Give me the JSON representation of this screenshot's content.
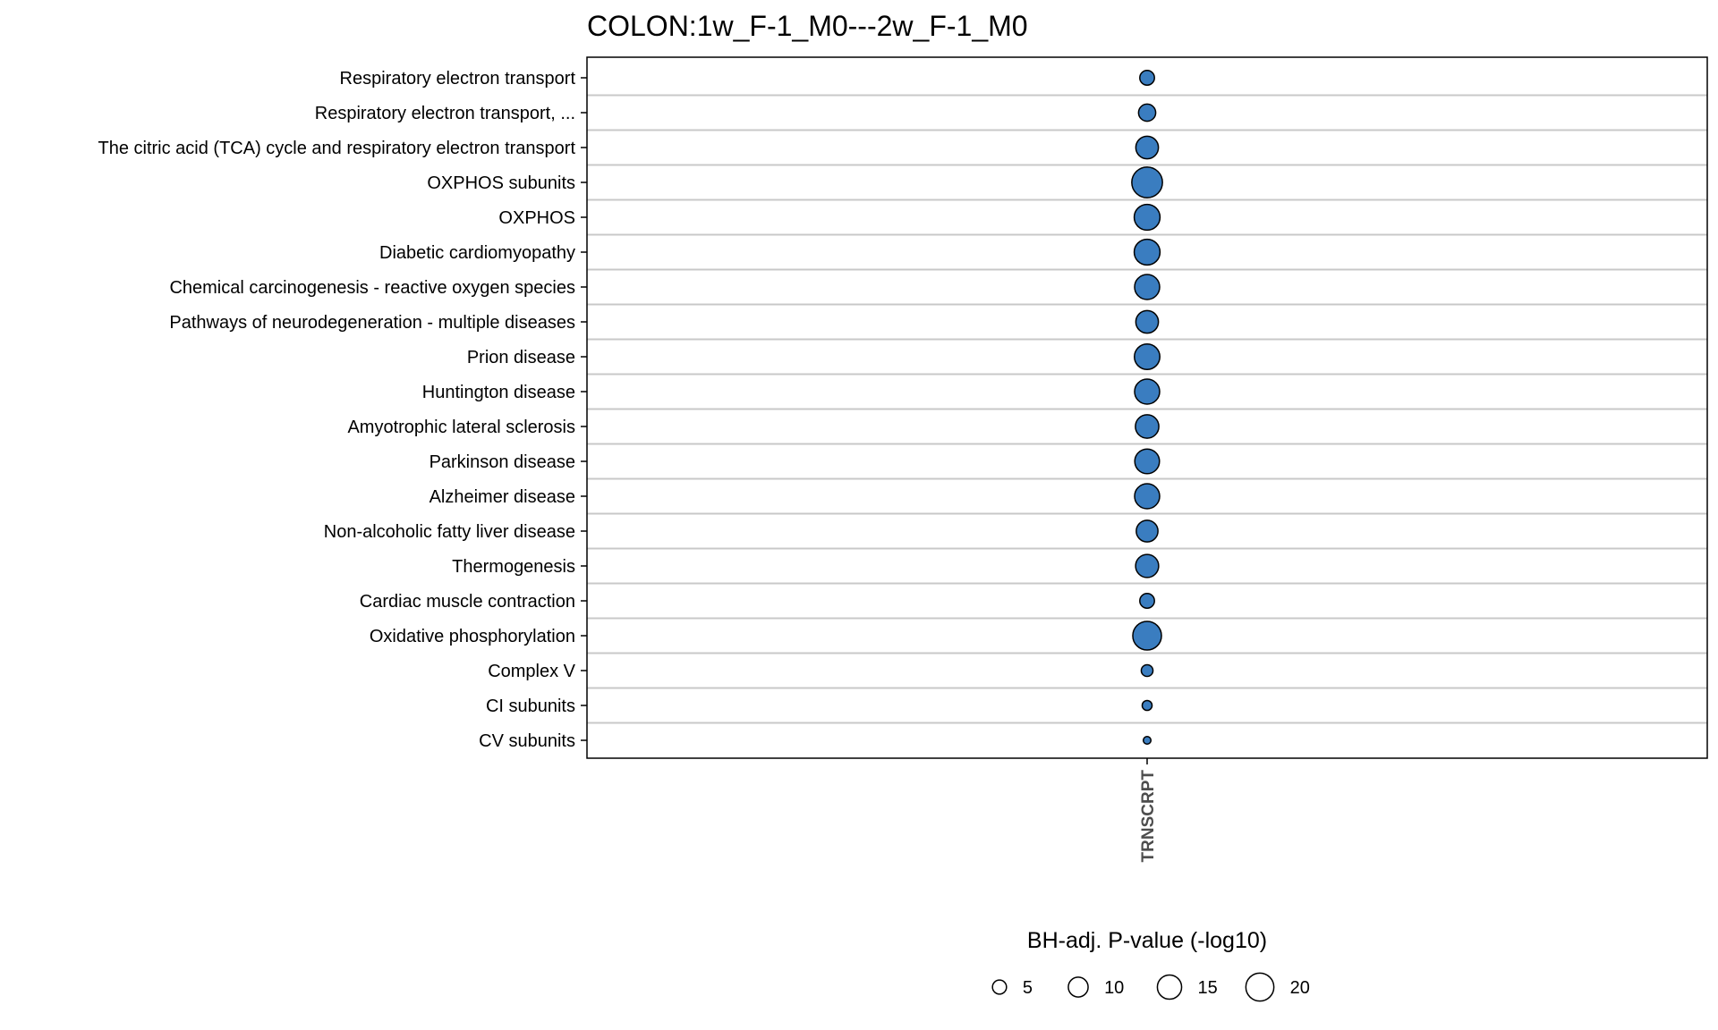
{
  "chart_data": {
    "type": "scatter",
    "title": "COLON:1w_F-1_M0---2w_F-1_M0",
    "x_categories": [
      "TRNSCRPT"
    ],
    "y_categories": [
      "Respiratory electron transport",
      "Respiratory electron transport, ...",
      "The citric acid (TCA) cycle and respiratory electron transport",
      "OXPHOS subunits",
      "OXPHOS",
      "Diabetic cardiomyopathy",
      "Chemical carcinogenesis - reactive oxygen species",
      "Pathways of neurodegeneration - multiple diseases",
      "Prion disease",
      "Huntington disease",
      "Amyotrophic lateral sclerosis",
      "Parkinson disease",
      "Alzheimer disease",
      "Non-alcoholic fatty liver disease",
      "Thermogenesis",
      "Cardiac muscle contraction",
      "Oxidative phosphorylation",
      "Complex V",
      "CI subunits",
      "CV subunits"
    ],
    "points": [
      {
        "x": "TRNSCRPT",
        "y": "Respiratory electron transport",
        "size": 5.5
      },
      {
        "x": "TRNSCRPT",
        "y": "Respiratory electron transport, ...",
        "size": 7.5
      },
      {
        "x": "TRNSCRPT",
        "y": "The citric acid (TCA) cycle and respiratory electron transport",
        "size": 13
      },
      {
        "x": "TRNSCRPT",
        "y": "OXPHOS subunits",
        "size": 24
      },
      {
        "x": "TRNSCRPT",
        "y": "OXPHOS",
        "size": 17
      },
      {
        "x": "TRNSCRPT",
        "y": "Diabetic cardiomyopathy",
        "size": 17
      },
      {
        "x": "TRNSCRPT",
        "y": "Chemical carcinogenesis - reactive oxygen species",
        "size": 16
      },
      {
        "x": "TRNSCRPT",
        "y": "Pathways of neurodegeneration - multiple diseases",
        "size": 13
      },
      {
        "x": "TRNSCRPT",
        "y": "Prion disease",
        "size": 16.5
      },
      {
        "x": "TRNSCRPT",
        "y": "Huntington disease",
        "size": 16
      },
      {
        "x": "TRNSCRPT",
        "y": "Amyotrophic lateral sclerosis",
        "size": 14
      },
      {
        "x": "TRNSCRPT",
        "y": "Parkinson disease",
        "size": 15.5
      },
      {
        "x": "TRNSCRPT",
        "y": "Alzheimer disease",
        "size": 16
      },
      {
        "x": "TRNSCRPT",
        "y": "Non-alcoholic fatty liver disease",
        "size": 12
      },
      {
        "x": "TRNSCRPT",
        "y": "Thermogenesis",
        "size": 13.5
      },
      {
        "x": "TRNSCRPT",
        "y": "Cardiac muscle contraction",
        "size": 5.5
      },
      {
        "x": "TRNSCRPT",
        "y": "Oxidative phosphorylation",
        "size": 21
      },
      {
        "x": "TRNSCRPT",
        "y": "Complex V",
        "size": 3.5
      },
      {
        "x": "TRNSCRPT",
        "y": "CI subunits",
        "size": 2.5
      },
      {
        "x": "TRNSCRPT",
        "y": "CV subunits",
        "size": 1.5
      }
    ],
    "size_legend": {
      "title": "BH-adj. P-value (-log10)",
      "breaks": [
        5,
        10,
        15,
        20
      ],
      "labels": [
        "5",
        "10",
        "15",
        "20"
      ]
    },
    "point_fill": "#3A7DC0",
    "point_stroke": "#000000",
    "grid_color": "#C8C8C8",
    "grid": "horizontal",
    "legend_position": "bottom"
  }
}
